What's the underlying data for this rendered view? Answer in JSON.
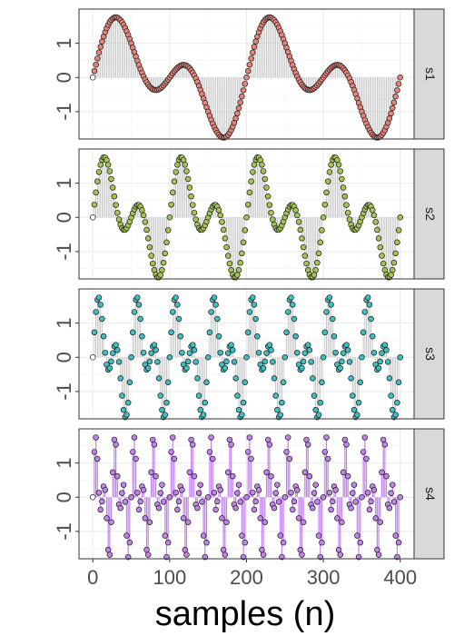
{
  "chart_data": {
    "type": "scatter",
    "layout": "faceted-rows",
    "xlabel": "samples (n)",
    "x_range": [
      0,
      400
    ],
    "x_step": 2,
    "x_ticks": [
      0,
      100,
      200,
      300,
      400
    ],
    "x_tick_labels": [
      "0",
      "100",
      "200",
      "300",
      "400"
    ],
    "y_ticks": [
      -1,
      0,
      1
    ],
    "y_tick_labels": [
      "-1",
      "0",
      "1"
    ],
    "ylim": [
      -1.8,
      2.0
    ],
    "grid": true,
    "stems_to_zero": true,
    "marker": "hollow-circle-filled-series-color",
    "series": [
      {
        "name": "s1",
        "color": "#e8837a",
        "stem_color": "#bdbdbd",
        "formula": "sin(2*pi*n/200) + sin(2*pi*2*n/200)",
        "freq_cycles_per_200": [
          1,
          2
        ]
      },
      {
        "name": "s2",
        "color": "#a3c552",
        "stem_color": "#bdbdbd",
        "formula": "sin(2*pi*2*n/200) + sin(2*pi*4*n/200)",
        "freq_cycles_per_200": [
          2,
          4
        ]
      },
      {
        "name": "s3",
        "color": "#3fbfc0",
        "stem_color": "#bdbdbd",
        "formula": "sin(2*pi*4*n/200) + sin(2*pi*8*n/200)",
        "freq_cycles_per_200": [
          4,
          8
        ]
      },
      {
        "name": "s4",
        "color": "#c182ec",
        "stem_color": "#c182ec",
        "formula": "sin(2*pi*8*n/200) + sin(2*pi*16*n/200)",
        "freq_cycles_per_200": [
          8,
          16
        ]
      }
    ]
  }
}
